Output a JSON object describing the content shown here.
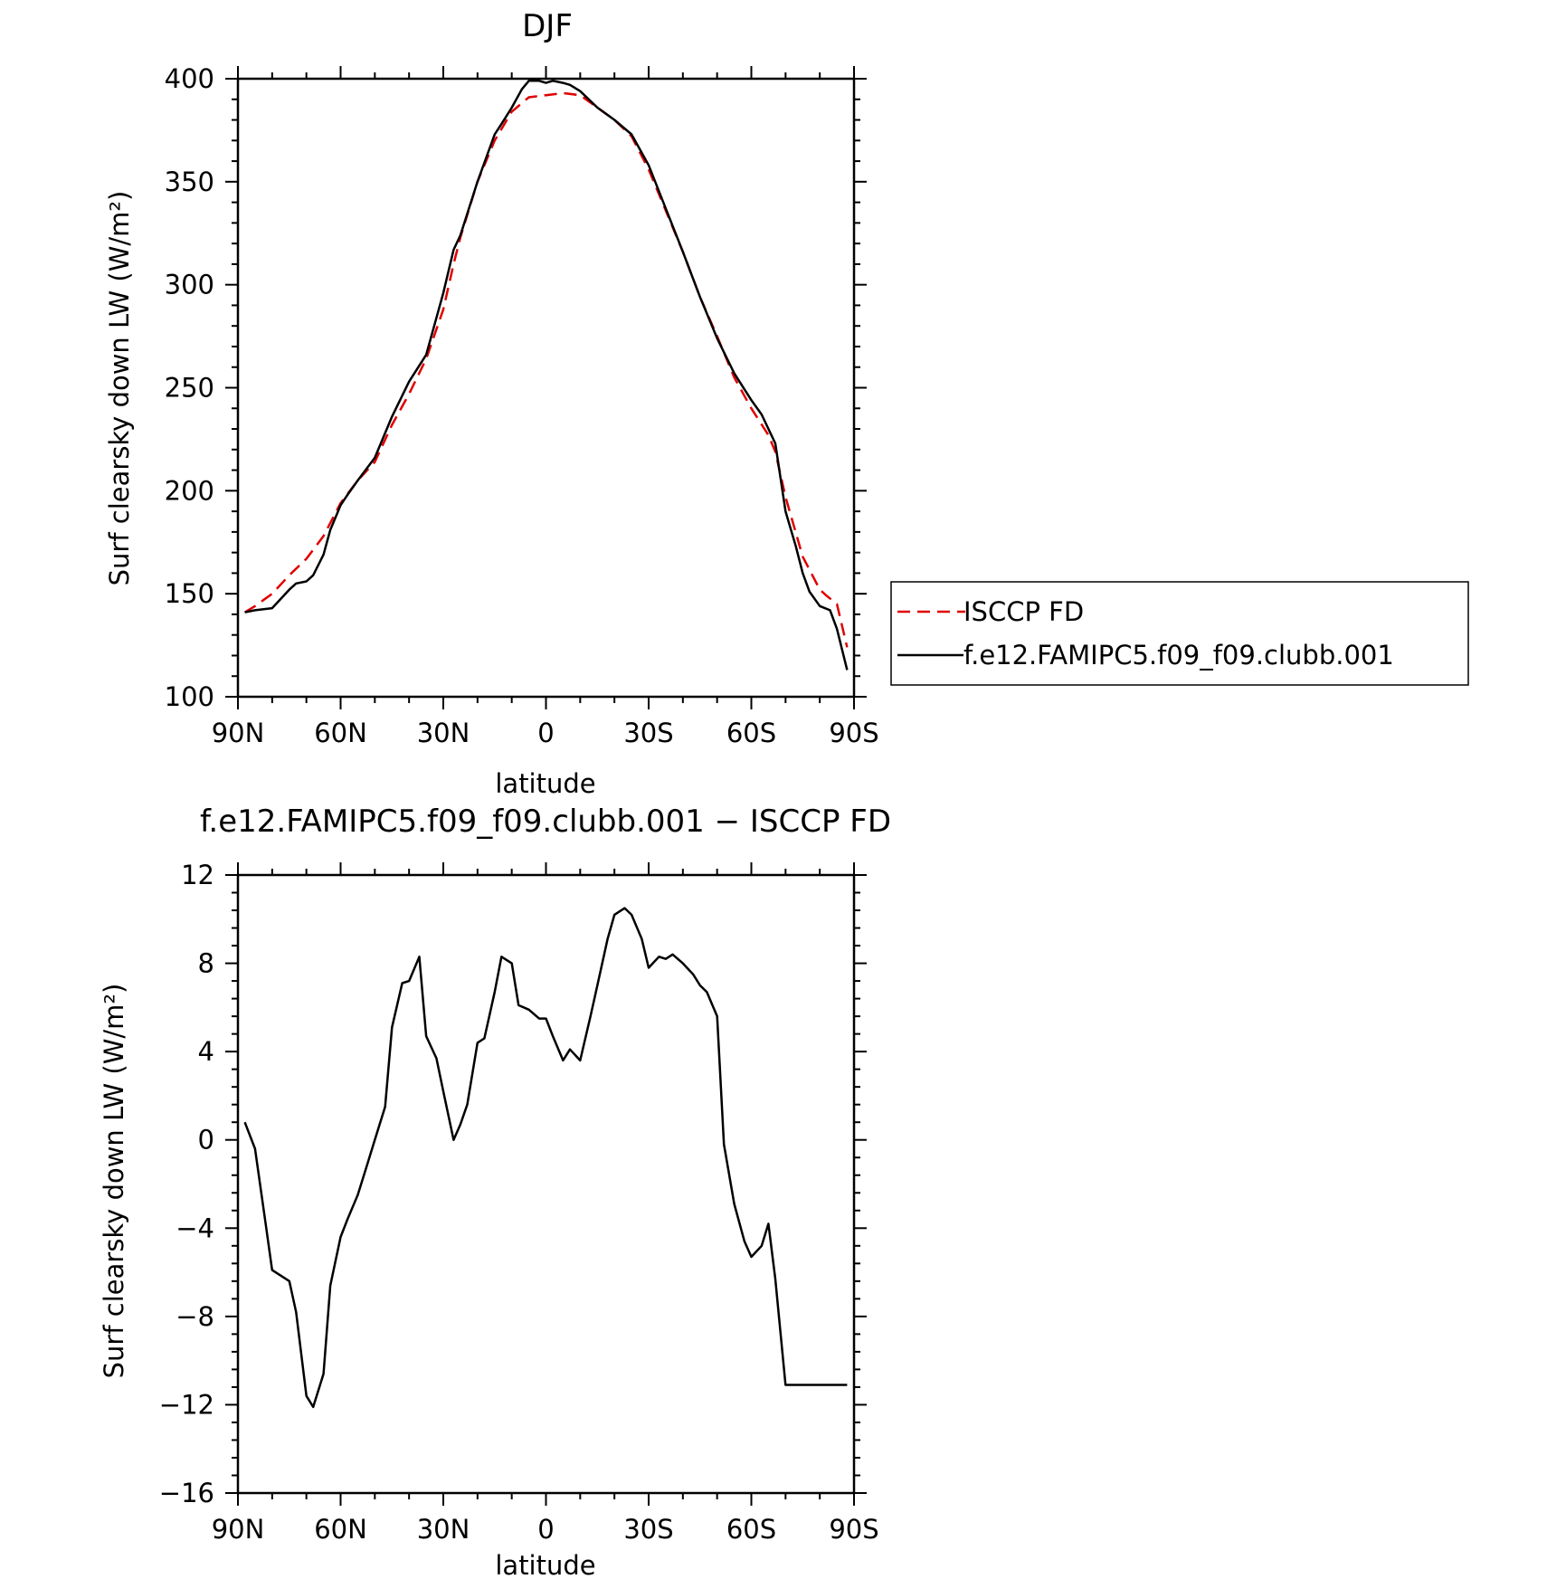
{
  "chart_data": [
    {
      "type": "line",
      "title": "DJF",
      "xlabel": "latitude",
      "ylabel": "Surf clearsky down LW (W/m²)",
      "xlim": [
        90,
        -90
      ],
      "ylim": [
        100,
        400
      ],
      "xticks": [
        90,
        60,
        30,
        0,
        -30,
        -60,
        -90
      ],
      "xtick_labels": [
        "90N",
        "60N",
        "30N",
        "0",
        "30S",
        "60S",
        "90S"
      ],
      "yticks": [
        100,
        150,
        200,
        250,
        300,
        350,
        400
      ],
      "ytick_labels": [
        "100",
        "150",
        "200",
        "250",
        "300",
        "350",
        "400"
      ],
      "legend_position": "right",
      "series": [
        {
          "name": "ISCCP FD",
          "color": "#e00000",
          "dash": "dashed",
          "x": [
            88,
            85,
            80,
            75,
            70,
            65,
            60,
            55,
            50,
            45,
            40,
            35,
            30,
            27,
            25,
            20,
            15,
            10,
            5,
            0,
            -5,
            -10,
            -15,
            -20,
            -25,
            -30,
            -35,
            -40,
            -45,
            -50,
            -55,
            -60,
            -65,
            -67,
            -70,
            -75,
            -80,
            -82,
            -85,
            -88
          ],
          "y": [
            141,
            144,
            150,
            159,
            167,
            178,
            194,
            205,
            214,
            232,
            247,
            264,
            288,
            310,
            323,
            350,
            370,
            384,
            391,
            392,
            393,
            392,
            386,
            380,
            372,
            356,
            336,
            316,
            294,
            275,
            255,
            240,
            227,
            219,
            197,
            168,
            152,
            149,
            145,
            124
          ]
        },
        {
          "name": "f.e12.FAMIPC5.f09_f09.clubb.001",
          "color": "#000000",
          "dash": "solid",
          "x": [
            88,
            85,
            80,
            75,
            73,
            70,
            68,
            65,
            63,
            60,
            58,
            55,
            50,
            45,
            40,
            35,
            30,
            27,
            25,
            20,
            15,
            13,
            10,
            7,
            5,
            2,
            0,
            -2,
            -5,
            -7,
            -10,
            -15,
            -20,
            -25,
            -30,
            -35,
            -40,
            -45,
            -50,
            -55,
            -60,
            -63,
            -65,
            -67,
            -70,
            -73,
            -75,
            -77,
            -80,
            -83,
            -85,
            -88
          ],
          "y": [
            141,
            142,
            143,
            152,
            155,
            156,
            159,
            169,
            181,
            193,
            198,
            205,
            216,
            236,
            253,
            266,
            296,
            317,
            324,
            350,
            373,
            378,
            386,
            395,
            399,
            399,
            398,
            399,
            398,
            397,
            394,
            386,
            380,
            373,
            358,
            337,
            316,
            294,
            274,
            257,
            244,
            237,
            230,
            223,
            190,
            173,
            160,
            151,
            144,
            142,
            133,
            113
          ]
        }
      ]
    },
    {
      "type": "line",
      "title": "f.e12.FAMIPC5.f09_f09.clubb.001 − ISCCP FD",
      "xlabel": "latitude",
      "ylabel": "Surf clearsky down LW (W/m²)",
      "xlim": [
        90,
        -90
      ],
      "ylim": [
        -16,
        12
      ],
      "xticks": [
        90,
        60,
        30,
        0,
        -30,
        -60,
        -90
      ],
      "xtick_labels": [
        "90N",
        "60N",
        "30N",
        "0",
        "30S",
        "60S",
        "90S"
      ],
      "yticks": [
        -16,
        -12,
        -8,
        -4,
        0,
        4,
        8,
        12
      ],
      "ytick_labels": [
        "−16",
        "−12",
        "−8",
        "−4",
        "0",
        "4",
        "8",
        "12"
      ],
      "series": [
        {
          "color": "#000000",
          "dash": "solid",
          "x": [
            88,
            85,
            82,
            80,
            75,
            73,
            70,
            68,
            65,
            63,
            60,
            58,
            55,
            52,
            50,
            47,
            45,
            42,
            40,
            37,
            35,
            32,
            30,
            27,
            25,
            23,
            20,
            18,
            15,
            13,
            10,
            8,
            5,
            2,
            0,
            -2,
            -5,
            -7,
            -10,
            -13,
            -15,
            -18,
            -20,
            -23,
            -25,
            -28,
            -30,
            -33,
            -35,
            -37,
            -40,
            -43,
            -45,
            -47,
            -50,
            -52,
            -55,
            -58,
            -60,
            -63,
            -65,
            -67,
            -70,
            -73,
            -75,
            -77,
            -80,
            -82,
            -85,
            -88
          ],
          "y": [
            0.8,
            -0.4,
            -3.7,
            -5.9,
            -6.4,
            -7.8,
            -11.6,
            -12.1,
            -10.6,
            -6.6,
            -4.4,
            -3.6,
            -2.5,
            -1.0,
            0.0,
            1.5,
            5.1,
            7.1,
            7.2,
            8.3,
            4.7,
            3.7,
            2.2,
            0.0,
            0.7,
            1.6,
            4.4,
            4.6,
            6.7,
            8.3,
            8.0,
            6.1,
            5.9,
            5.5,
            5.5,
            4.7,
            3.6,
            4.1,
            3.6,
            5.6,
            7.0,
            9.1,
            10.2,
            10.5,
            10.2,
            9.1,
            7.8,
            8.3,
            8.2,
            8.4,
            8.0,
            7.5,
            7.0,
            6.7,
            5.6,
            -0.2,
            -2.9,
            -4.6,
            -5.3,
            -4.8,
            -3.8,
            -6.3,
            -11.1,
            -11.1,
            -11.1,
            -11.1,
            -11.1,
            -11.1,
            -11.1,
            -11.1
          ]
        }
      ]
    }
  ]
}
